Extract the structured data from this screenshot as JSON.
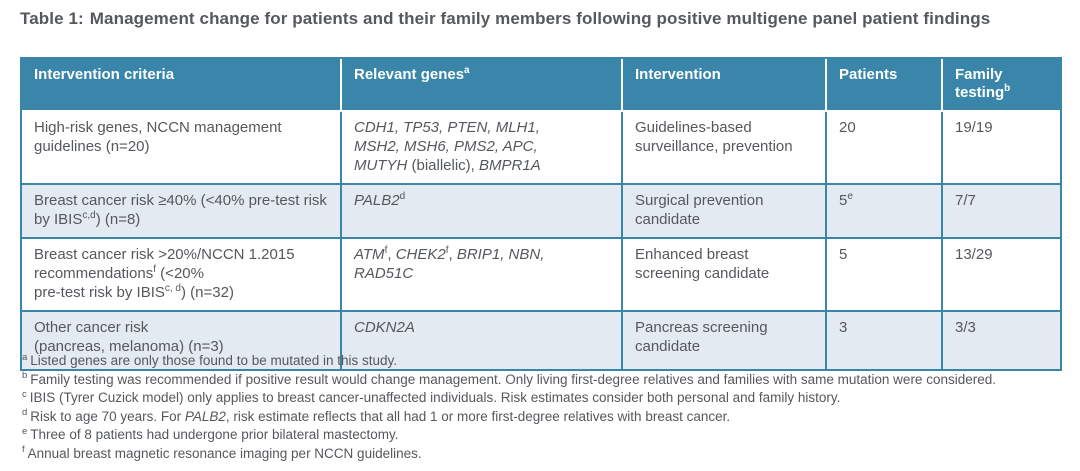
{
  "colors": {
    "header_bg": "#3a86aa",
    "header_text": "#ffffff",
    "row_alt_bg": "#e3eaf1",
    "border": "#3a86aa",
    "text": "#55585c"
  },
  "title": {
    "label": "Table 1:",
    "caption": "Management change for patients and their family members following positive multigene panel patient findings"
  },
  "table": {
    "columns": [
      {
        "label": "Intervention criteria",
        "sup": ""
      },
      {
        "label": "Relevant genes",
        "sup": "a"
      },
      {
        "label": "Intervention",
        "sup": ""
      },
      {
        "label": "Patients",
        "sup": ""
      },
      {
        "label": "Family testing",
        "sup": "b"
      }
    ],
    "rows": [
      {
        "criteria": [
          {
            "t": "High-risk genes, NCCN management guidelines (n=20)"
          }
        ],
        "genes": [
          {
            "t": "CDH1, TP53, PTEN, MLH1,",
            "i": true
          },
          {
            "br": true
          },
          {
            "t": "MSH2, MSH6, PMS2, APC,",
            "i": true
          },
          {
            "br": true
          },
          {
            "t": "MUTYH",
            "i": true
          },
          {
            "t": " (biallelic), "
          },
          {
            "t": "BMPR1A",
            "i": true
          }
        ],
        "intervention": [
          {
            "t": "Guidelines-based surveillance, prevention"
          }
        ],
        "patients": [
          {
            "t": "20"
          }
        ],
        "family_testing": [
          {
            "t": "19/19"
          }
        ]
      },
      {
        "criteria": [
          {
            "t": "Breast cancer risk ≥40% (<40% pre-test risk by IBIS"
          },
          {
            "t": "c,d",
            "s": true
          },
          {
            "t": ") (n=8)"
          }
        ],
        "genes": [
          {
            "t": "PALB2",
            "i": true
          },
          {
            "t": "d",
            "s": true
          }
        ],
        "intervention": [
          {
            "t": "Surgical prevention candidate"
          }
        ],
        "patients": [
          {
            "t": "5"
          },
          {
            "t": "e",
            "s": true
          }
        ],
        "family_testing": [
          {
            "t": "7/7"
          }
        ]
      },
      {
        "criteria": [
          {
            "t": "Breast cancer risk >20%/NCCN 1.2015 recommendations"
          },
          {
            "t": "f",
            "s": true
          },
          {
            "t": " (<20%"
          },
          {
            "br": true
          },
          {
            "t": "pre-test risk by IBIS"
          },
          {
            "t": "c, d",
            "s": true
          },
          {
            "t": ") (n=32)"
          }
        ],
        "genes": [
          {
            "t": "ATM",
            "i": true
          },
          {
            "t": "f",
            "s": true
          },
          {
            "t": ", "
          },
          {
            "t": "CHEK2",
            "i": true
          },
          {
            "t": "f",
            "s": true
          },
          {
            "t": ", "
          },
          {
            "t": "BRIP1, NBN,",
            "i": true
          },
          {
            "br": true
          },
          {
            "t": "RAD51C",
            "i": true
          }
        ],
        "intervention": [
          {
            "t": "Enhanced breast screening candidate"
          }
        ],
        "patients": [
          {
            "t": "5"
          }
        ],
        "family_testing": [
          {
            "t": "13/29"
          }
        ]
      },
      {
        "criteria": [
          {
            "t": "Other cancer risk"
          },
          {
            "br": true
          },
          {
            "t": "(pancreas, melanoma) (n=3)"
          }
        ],
        "genes": [
          {
            "t": "CDKN2A",
            "i": true
          }
        ],
        "intervention": [
          {
            "t": "Pancreas screening candidate"
          }
        ],
        "patients": [
          {
            "t": "3"
          }
        ],
        "family_testing": [
          {
            "t": "3/3"
          }
        ]
      }
    ]
  },
  "footnotes": [
    {
      "marker": "a",
      "text": [
        {
          "t": "Listed genes are only those found to be mutated in this study."
        }
      ]
    },
    {
      "marker": "b",
      "text": [
        {
          "t": "Family testing was recommended if positive result would change management. Only living first-degree relatives and families with same mutation were considered."
        }
      ]
    },
    {
      "marker": "c",
      "text": [
        {
          "t": "IBIS (Tyrer Cuzick model) only applies to breast cancer-unaffected individuals. Risk estimates consider both personal and family history."
        }
      ]
    },
    {
      "marker": "d",
      "text": [
        {
          "t": "Risk to age 70 years. For "
        },
        {
          "t": "PALB2",
          "i": true
        },
        {
          "t": ", risk estimate reflects that all had 1 or more first-degree relatives with breast cancer."
        }
      ]
    },
    {
      "marker": "e",
      "text": [
        {
          "t": "Three of 8 patients had undergone prior bilateral mastectomy."
        }
      ]
    },
    {
      "marker": "f",
      "text": [
        {
          "t": "Annual breast magnetic resonance imaging per NCCN guidelines."
        }
      ]
    }
  ]
}
